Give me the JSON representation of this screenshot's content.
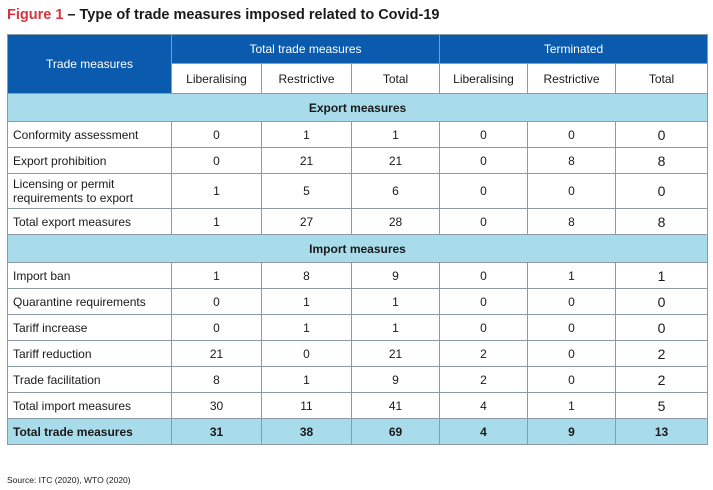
{
  "figure": {
    "number": "Figure 1",
    "title": " – Type of trade measures imposed related to Covid-19"
  },
  "table": {
    "row_header": "Trade measures",
    "group_total": "Total trade measures",
    "group_terminated": "Terminated",
    "sub_headers": [
      "Liberalising",
      "Restrictive",
      "Total",
      "Liberalising",
      "Restrictive",
      "Total"
    ],
    "sections": [
      {
        "title": "Export measures",
        "rows": [
          {
            "label": "Conformity assessment",
            "values": [
              "0",
              "1",
              "1",
              "0",
              "0",
              "0"
            ]
          },
          {
            "label": "Export prohibition",
            "values": [
              "0",
              "21",
              "21",
              "0",
              "8",
              "8"
            ]
          },
          {
            "label": "Licensing or permit requirements to export",
            "values": [
              "1",
              "5",
              "6",
              "0",
              "0",
              "0"
            ]
          },
          {
            "label": "Total export measures",
            "values": [
              "1",
              "27",
              "28",
              "0",
              "8",
              "8"
            ]
          }
        ]
      },
      {
        "title": "Import measures",
        "rows": [
          {
            "label": "Import ban",
            "values": [
              "1",
              "8",
              "9",
              "0",
              "1",
              "1"
            ]
          },
          {
            "label": "Quarantine requirements",
            "values": [
              "0",
              "1",
              "1",
              "0",
              "0",
              "0"
            ]
          },
          {
            "label": "Tariff increase",
            "values": [
              "0",
              "1",
              "1",
              "0",
              "0",
              "0"
            ]
          },
          {
            "label": "Tariff reduction",
            "values": [
              "21",
              "0",
              "21",
              "2",
              "0",
              "2"
            ]
          },
          {
            "label": "Trade facilitation",
            "values": [
              "8",
              "1",
              "9",
              "2",
              "0",
              "2"
            ]
          },
          {
            "label": "Total import measures",
            "values": [
              "30",
              "11",
              "41",
              "4",
              "1",
              "5"
            ]
          }
        ]
      }
    ],
    "grand_total": {
      "label": "Total trade measures",
      "values": [
        "31",
        "38",
        "69",
        "4",
        "9",
        "13"
      ]
    }
  },
  "source": "Source: ITC (2020), WTO (2020)",
  "colors": {
    "header_blue": "#0a5bad",
    "section_cyan": "#a8dceb",
    "figure_red": "#d6343e"
  }
}
